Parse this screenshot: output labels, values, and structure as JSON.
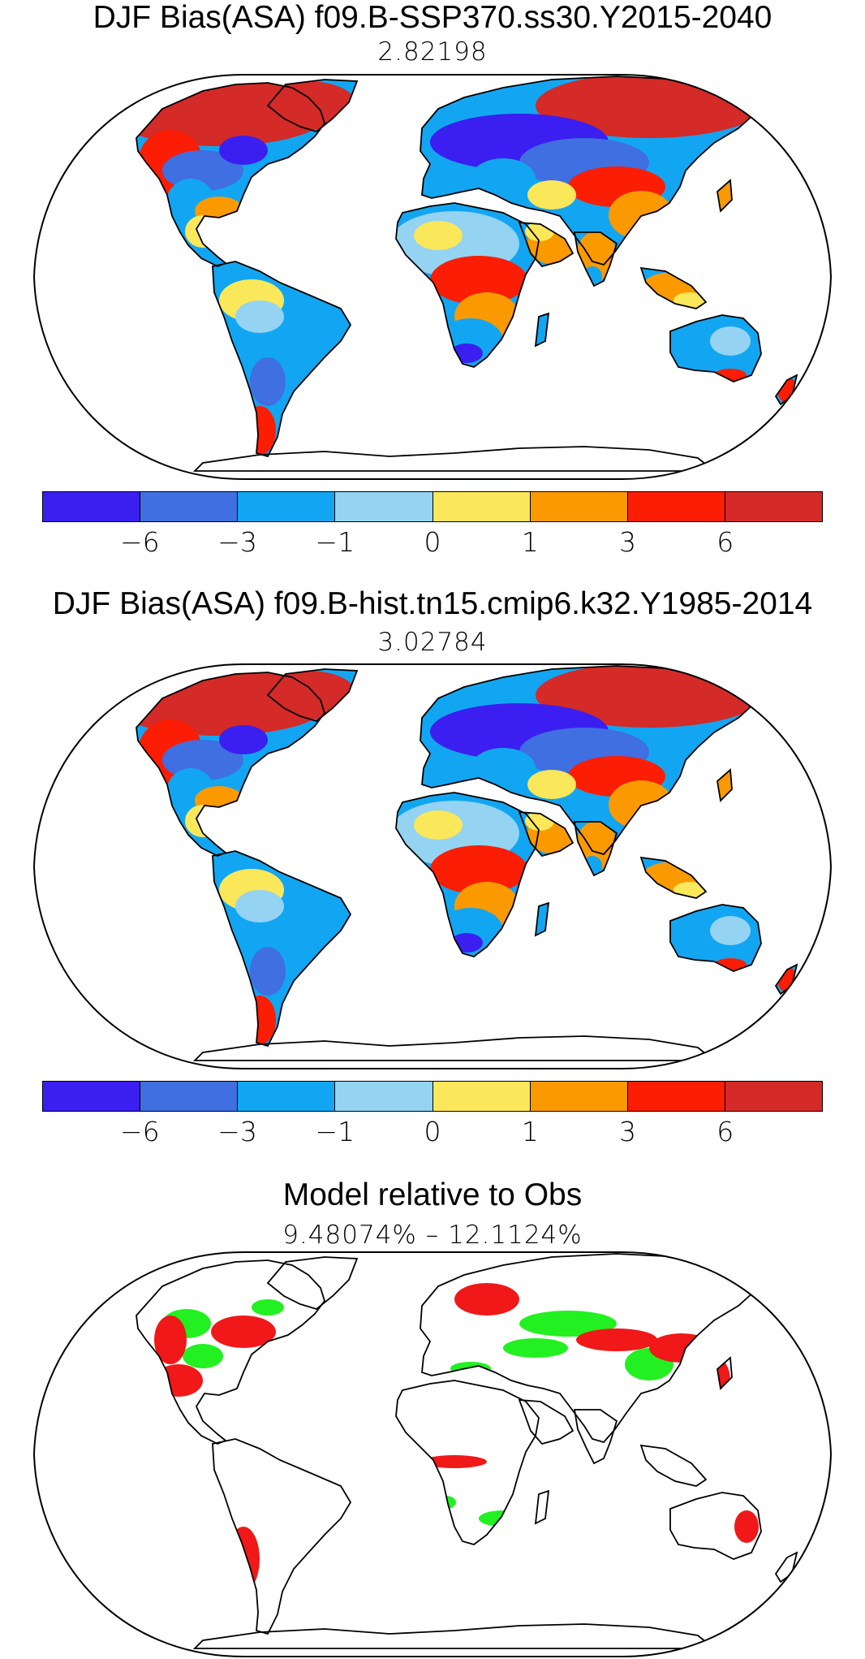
{
  "panels": [
    {
      "title": "DJF Bias(ASA) f09.B-SSP370.ss30.Y2015-2040",
      "subtitle": "2.82198",
      "field": "bias"
    },
    {
      "title": "DJF Bias(ASA) f09.B-hist.tn15.cmip6.k32.Y1985-2014",
      "subtitle": "3.02784",
      "field": "bias"
    },
    {
      "title": "Model relative to Obs",
      "subtitle": "9.48074% – 12.1124%",
      "field": "relative"
    }
  ],
  "colorbar": {
    "colors": [
      "#3a1ff0",
      "#3f6fe0",
      "#12a6f2",
      "#94d3f2",
      "#fbe75a",
      "#fb9a00",
      "#fb1d04",
      "#d42a28"
    ],
    "ticks": [
      "−6",
      "−3",
      "−1",
      "0",
      "1",
      "3",
      "6"
    ]
  },
  "relative_colors": {
    "better": "#22f020",
    "worse": "#f01818"
  },
  "icons": [
    "colorbar-swatches",
    "robinson-projection-map"
  ]
}
